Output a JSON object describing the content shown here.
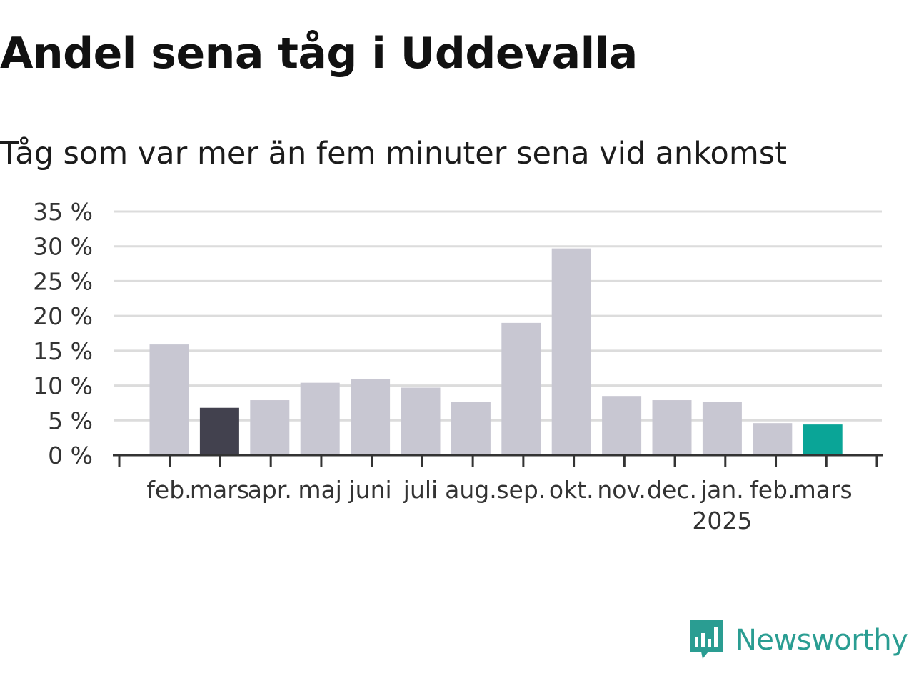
{
  "title": "Andel sena tåg i Uddevalla",
  "subtitle": "Tåg som var mer än fem minuter sena vid ankomst",
  "brand": {
    "name": "Newsworthy",
    "color": "#2a9d92",
    "icon": "newsworthy-logo-icon"
  },
  "colors": {
    "default_bar": "#c8c7d2",
    "previous_year_bar": "#42414e",
    "current_bar": "#0aa597",
    "grid": "#dcdcdc",
    "axis": "#333333"
  },
  "chart_data": {
    "type": "bar",
    "categories": [
      "feb.",
      "mars",
      "apr.",
      "maj",
      "juni",
      "juli",
      "aug.",
      "sep.",
      "okt.",
      "nov.",
      "dec.",
      "jan.",
      "feb.",
      "mars"
    ],
    "values": [
      15.9,
      6.8,
      7.9,
      10.4,
      10.9,
      9.7,
      7.6,
      19.0,
      29.7,
      8.5,
      7.9,
      7.6,
      4.6,
      4.4
    ],
    "highlight": [
      "default",
      "previous_year",
      "default",
      "default",
      "default",
      "default",
      "default",
      "default",
      "default",
      "default",
      "default",
      "default",
      "default",
      "current"
    ],
    "year_labels": [
      {
        "label": "2025",
        "category_index": 11
      }
    ],
    "y_ticks": [
      0,
      5,
      10,
      15,
      20,
      25,
      30,
      35
    ],
    "y_tick_labels": [
      "0 %",
      "5 %",
      "10 %",
      "15 %",
      "20 %",
      "25 %",
      "30 %",
      "35 %"
    ],
    "ylim": [
      0,
      35
    ],
    "grid": true,
    "legend": "none"
  }
}
